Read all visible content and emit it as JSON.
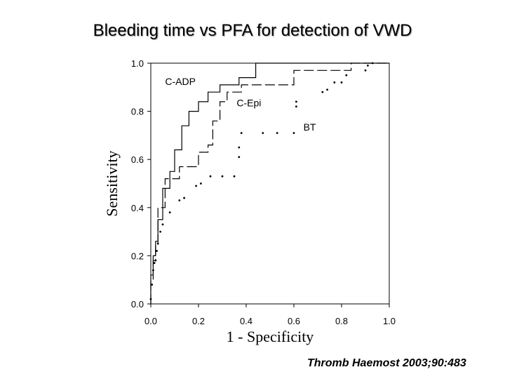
{
  "slide": {
    "title": "Bleeding time vs PFA for detection of VWD",
    "citation": "Thromb Haemost 2003;90:483"
  },
  "chart_data": {
    "type": "line",
    "title": "Bleeding time vs PFA for detection of VWD",
    "xlabel": "1 - Specificity",
    "ylabel": "Sensitivity",
    "xlim": [
      0,
      1
    ],
    "ylim": [
      0,
      1
    ],
    "xticks": [
      "0.0",
      "0.2",
      "0.4",
      "0.6",
      "0.8",
      "1.0"
    ],
    "yticks": [
      "0.0",
      "0.2",
      "0.4",
      "0.6",
      "0.8",
      "1.0"
    ],
    "grid": false,
    "series": [
      {
        "name": "C-ADP",
        "style": "solid",
        "color": "#000000",
        "label_at": [
          0.06,
          0.91
        ],
        "x": [
          0,
          0,
          0.01,
          0.01,
          0.02,
          0.02,
          0.03,
          0.03,
          0.05,
          0.05,
          0.08,
          0.08,
          0.1,
          0.1,
          0.13,
          0.13,
          0.16,
          0.16,
          0.2,
          0.2,
          0.24,
          0.24,
          0.29,
          0.29,
          0.37,
          0.37,
          0.44,
          0.44,
          1.0
        ],
        "y": [
          0,
          0.12,
          0.12,
          0.2,
          0.2,
          0.26,
          0.26,
          0.35,
          0.35,
          0.48,
          0.48,
          0.55,
          0.55,
          0.64,
          0.64,
          0.74,
          0.74,
          0.8,
          0.8,
          0.84,
          0.84,
          0.88,
          0.88,
          0.91,
          0.91,
          0.94,
          0.94,
          1.0,
          1.0
        ]
      },
      {
        "name": "C-Epi",
        "style": "dashed",
        "color": "#000000",
        "label_at": [
          0.36,
          0.82
        ],
        "x": [
          0,
          0,
          0.01,
          0.01,
          0.02,
          0.02,
          0.03,
          0.03,
          0.06,
          0.06,
          0.12,
          0.12,
          0.2,
          0.2,
          0.24,
          0.24,
          0.26,
          0.26,
          0.29,
          0.29,
          0.32,
          0.32,
          0.38,
          0.38,
          0.6,
          0.6,
          0.84,
          0.84,
          1.0
        ],
        "y": [
          0,
          0.1,
          0.1,
          0.18,
          0.18,
          0.25,
          0.25,
          0.4,
          0.4,
          0.52,
          0.52,
          0.57,
          0.57,
          0.63,
          0.63,
          0.66,
          0.66,
          0.76,
          0.76,
          0.84,
          0.84,
          0.88,
          0.88,
          0.91,
          0.91,
          0.97,
          0.97,
          1.0,
          1.0
        ]
      },
      {
        "name": "BT",
        "style": "dotted",
        "color": "#000000",
        "label_at": [
          0.64,
          0.72
        ],
        "x": [
          0,
          0.005,
          0.01,
          0.015,
          0.02,
          0.025,
          0.03,
          0.04,
          0.05,
          0.08,
          0.12,
          0.14,
          0.19,
          0.21,
          0.25,
          0.3,
          0.35,
          0.37,
          0.37,
          0.38,
          0.47,
          0.53,
          0.6,
          0.61,
          0.61,
          0.72,
          0.74,
          0.77,
          0.8,
          0.82,
          0.9,
          0.91,
          0.93
        ],
        "y": [
          0.02,
          0.08,
          0.14,
          0.17,
          0.18,
          0.22,
          0.25,
          0.3,
          0.33,
          0.38,
          0.43,
          0.44,
          0.49,
          0.5,
          0.53,
          0.53,
          0.53,
          0.61,
          0.65,
          0.71,
          0.71,
          0.71,
          0.71,
          0.82,
          0.84,
          0.88,
          0.89,
          0.92,
          0.92,
          0.95,
          0.97,
          0.99,
          1.0
        ]
      }
    ]
  }
}
